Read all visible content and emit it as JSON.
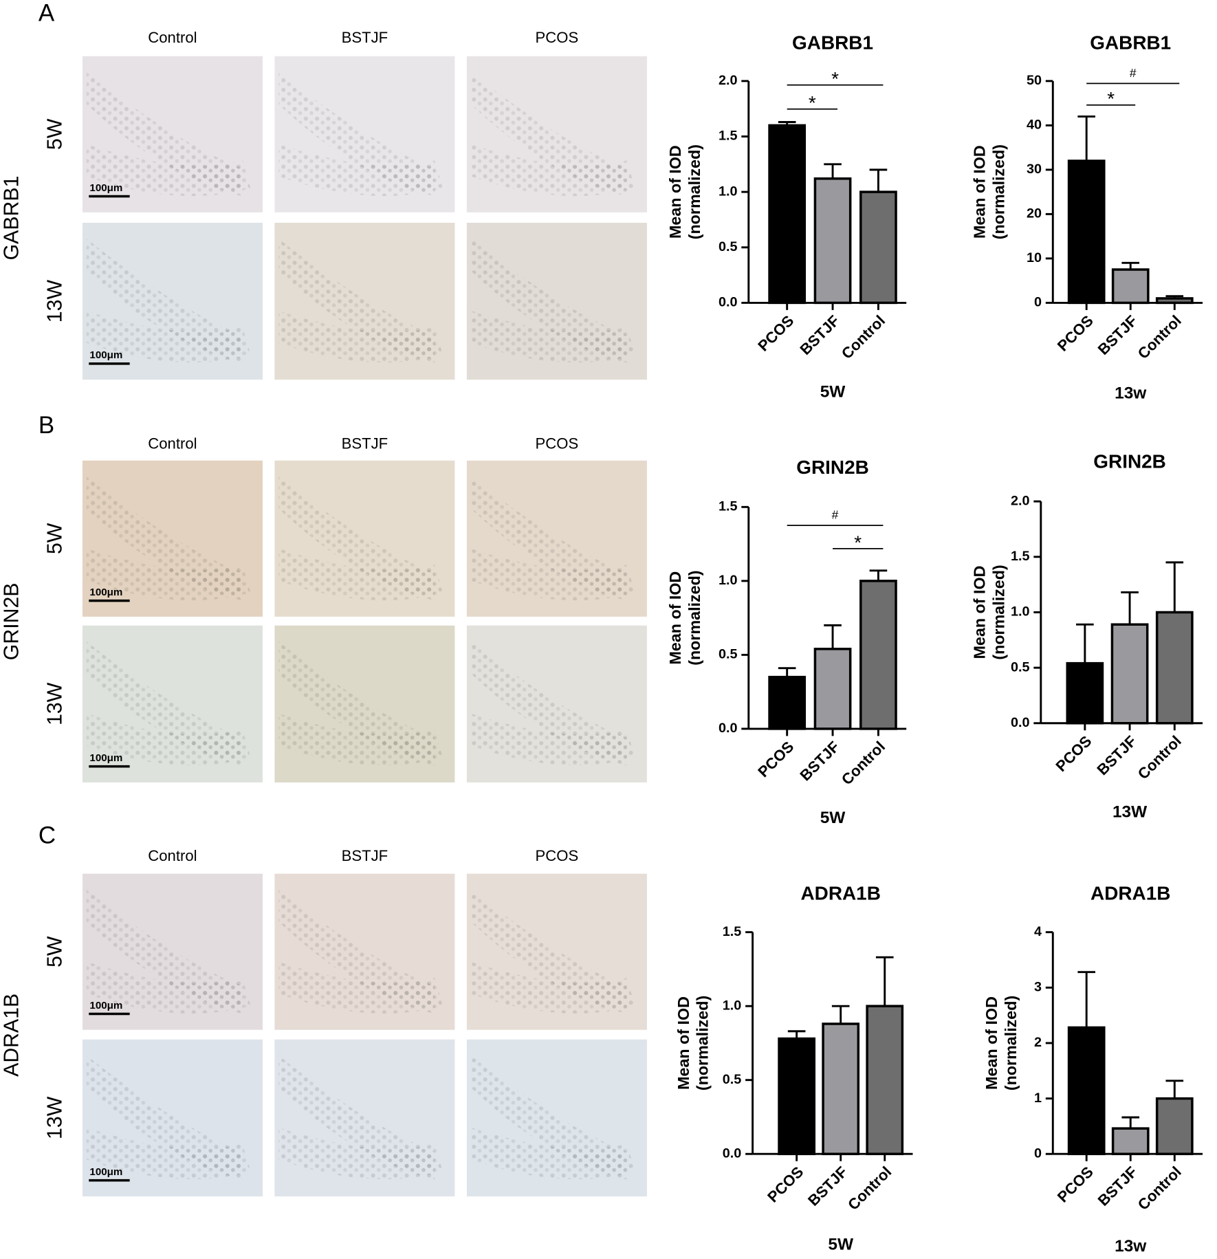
{
  "figure": {
    "panels": [
      {
        "letter": "A",
        "gene": "GABRB1",
        "columns": [
          "Control",
          "BSTJF",
          "PCOS"
        ],
        "rows": [
          "5W",
          "13W"
        ],
        "scale_bar": "100μm"
      },
      {
        "letter": "B",
        "gene": "GRIN2B",
        "columns": [
          "Control",
          "BSTJF",
          "PCOS"
        ],
        "rows": [
          "5W",
          "13W"
        ],
        "scale_bar": "100μm"
      },
      {
        "letter": "C",
        "gene": "ADRA1B",
        "columns": [
          "Control",
          "BSTJF",
          "PCOS"
        ],
        "rows": [
          "5W",
          "13W"
        ],
        "scale_bar": "100μm"
      }
    ]
  },
  "chart_data": [
    {
      "type": "bar",
      "title": "GABRB1",
      "y_label": [
        "Mean of IOD",
        "(normalized)"
      ],
      "x_label": "5W",
      "categories": [
        "PCOS",
        "BSTJF",
        "Control"
      ],
      "values": [
        1.6,
        1.12,
        1.0
      ],
      "errors": [
        0.03,
        0.13,
        0.2
      ],
      "colors": [
        "#000000",
        "#9a9a9e",
        "#6e6e6e"
      ],
      "ylim": [
        0,
        2
      ],
      "yticks": [
        {
          "value": 0,
          "label": "0.0"
        },
        {
          "value": 0.5,
          "label": "0.5"
        },
        {
          "value": 1,
          "label": "1.0"
        },
        {
          "value": 1.5,
          "label": "1.5"
        },
        {
          "value": 2,
          "label": "2.0"
        }
      ],
      "annotations": [
        {
          "text": "*",
          "from": 0,
          "to": 2
        },
        {
          "text": "*",
          "from": 0,
          "to": 1
        }
      ]
    },
    {
      "type": "bar",
      "title": "GABRB1",
      "y_label": [
        "Mean of IOD",
        "(normalized)"
      ],
      "x_label": "13w",
      "categories": [
        "PCOS",
        "BSTJF",
        "Control"
      ],
      "values": [
        32,
        7.5,
        1.0
      ],
      "errors": [
        10,
        1.5,
        0.5
      ],
      "colors": [
        "#000000",
        "#9a9a9e",
        "#6e6e6e"
      ],
      "ylim": [
        0,
        50
      ],
      "yticks": [
        0,
        10,
        20,
        30,
        40,
        50
      ],
      "annotations": [
        {
          "text": "#",
          "from": 0,
          "to": 2
        },
        {
          "text": "*",
          "from": 0,
          "to": 1
        }
      ]
    },
    {
      "type": "bar",
      "title": "GRIN2B",
      "y_label": [
        "Mean of IOD",
        "(normalized)"
      ],
      "x_label": "5W",
      "categories": [
        "PCOS",
        "BSTJF",
        "Control"
      ],
      "values": [
        0.35,
        0.54,
        1.0
      ],
      "errors": [
        0.06,
        0.16,
        0.07
      ],
      "colors": [
        "#000000",
        "#9a9a9e",
        "#6e6e6e"
      ],
      "ylim": [
        0,
        1.5
      ],
      "yticks": [
        {
          "value": 0,
          "label": "0.0"
        },
        {
          "value": 0.5,
          "label": "0.5"
        },
        {
          "value": 1,
          "label": "1.0"
        },
        {
          "value": 1.5,
          "label": "1.5"
        }
      ],
      "annotations": [
        {
          "text": "#",
          "from": 0,
          "to": 2
        },
        {
          "text": "*",
          "from": 1,
          "to": 2
        }
      ]
    },
    {
      "type": "bar",
      "title": "GRIN2B",
      "y_label": [
        "Mean of IOD",
        "(normalized)"
      ],
      "x_label": "13W",
      "categories": [
        "PCOS",
        "BSTJF",
        "Control"
      ],
      "values": [
        0.54,
        0.89,
        1.0
      ],
      "errors": [
        0.35,
        0.29,
        0.45
      ],
      "colors": [
        "#000000",
        "#9a9a9e",
        "#6e6e6e"
      ],
      "ylim": [
        0,
        2
      ],
      "yticks": [
        {
          "value": 0,
          "label": "0.0"
        },
        {
          "value": 0.5,
          "label": "0.5"
        },
        {
          "value": 1,
          "label": "1.0"
        },
        {
          "value": 1.5,
          "label": "1.5"
        },
        {
          "value": 2,
          "label": "2.0"
        }
      ]
    },
    {
      "type": "bar",
      "title": "ADRA1B",
      "y_label": [
        "Mean of IOD",
        "(normalized)"
      ],
      "x_label": "5W",
      "categories": [
        "PCOS",
        "BSTJF",
        "Control"
      ],
      "values": [
        0.78,
        0.88,
        1.0
      ],
      "errors": [
        0.05,
        0.12,
        0.33
      ],
      "colors": [
        "#000000",
        "#9a9a9e",
        "#6e6e6e"
      ],
      "ylim": [
        0,
        1.5
      ],
      "yticks": [
        {
          "value": 0,
          "label": "0.0"
        },
        {
          "value": 0.5,
          "label": "0.5"
        },
        {
          "value": 1,
          "label": "1.0"
        },
        {
          "value": 1.5,
          "label": "1.5"
        }
      ]
    },
    {
      "type": "bar",
      "title": "ADRA1B",
      "y_label": [
        "Mean of IOD",
        "(normalized)"
      ],
      "x_label": "13w",
      "categories": [
        "PCOS",
        "BSTJF",
        "Control"
      ],
      "values": [
        2.28,
        0.46,
        1.0
      ],
      "errors": [
        1.0,
        0.2,
        0.32
      ],
      "colors": [
        "#000000",
        "#9a9a9e",
        "#6e6e6e"
      ],
      "ylim": [
        0,
        4
      ],
      "yticks": [
        0,
        1,
        2,
        3,
        4
      ]
    }
  ]
}
